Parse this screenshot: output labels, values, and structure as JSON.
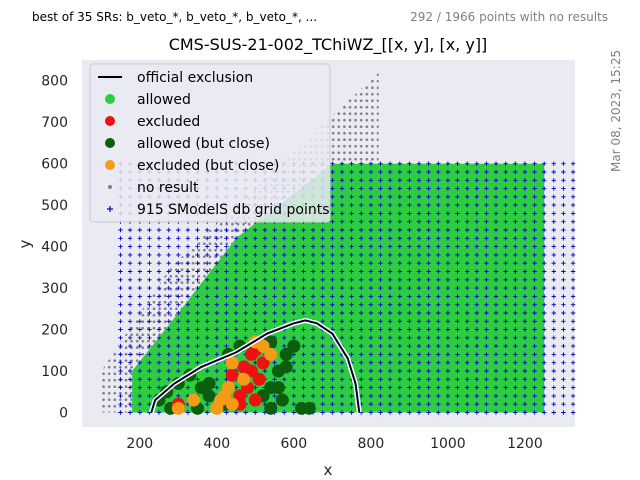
{
  "header": {
    "left_text": "best of 35 SRs: b_veto_*, b_veto_*, b_veto_*, ...",
    "right_text": "292 / 1966 points with no results",
    "side_date": "Mar 08, 2023, 15:25"
  },
  "chart_data": {
    "type": "scatter",
    "title": "CMS-SUS-21-002_TChiWZ_[[x, y], [x, y]]",
    "xlabel": "x",
    "ylabel": "y",
    "xlim": [
      50,
      1330
    ],
    "ylim": [
      -35,
      850
    ],
    "xticks": [
      200,
      400,
      600,
      800,
      1000,
      1200
    ],
    "yticks": [
      0,
      100,
      200,
      300,
      400,
      500,
      600,
      700,
      800
    ],
    "grid": false,
    "legend_position": "top-left",
    "legend": [
      {
        "label": "official exclusion",
        "marker": "line",
        "color": "#000000"
      },
      {
        "label": "allowed",
        "marker": "circle",
        "color": "#2ecc40"
      },
      {
        "label": "excluded",
        "marker": "circle",
        "color": "#ee1111"
      },
      {
        "label": "allowed (but close)",
        "marker": "circle",
        "color": "#0b5e0b"
      },
      {
        "label": "excluded (but close)",
        "marker": "circle",
        "color": "#f59b16"
      },
      {
        "label": "no result",
        "marker": "dot",
        "color": "#808080"
      },
      {
        "label": "915 SModelS db grid points",
        "marker": "plus",
        "color": "#0000cc"
      }
    ],
    "regions": {
      "allowed_region_outline": [
        [
          180,
          0
        ],
        [
          180,
          100
        ],
        [
          300,
          240
        ],
        [
          450,
          420
        ],
        [
          700,
          600
        ],
        [
          1250,
          600
        ],
        [
          1250,
          0
        ]
      ],
      "no_result_region_outline": [
        [
          100,
          0
        ],
        [
          100,
          100
        ],
        [
          280,
          350
        ],
        [
          820,
          820
        ],
        [
          820,
          600
        ],
        [
          700,
          600
        ],
        [
          450,
          420
        ],
        [
          300,
          240
        ],
        [
          180,
          100
        ],
        [
          180,
          0
        ]
      ],
      "db_grid": {
        "x_from": 150,
        "x_to": 1250,
        "x_step": 25,
        "y_from": 0,
        "y_to": 600,
        "y_step": 20
      }
    },
    "exclusion_curve": [
      [
        230,
        0
      ],
      [
        240,
        30
      ],
      [
        290,
        70
      ],
      [
        360,
        110
      ],
      [
        450,
        145
      ],
      [
        530,
        190
      ],
      [
        600,
        215
      ],
      [
        630,
        222
      ],
      [
        660,
        215
      ],
      [
        700,
        190
      ],
      [
        740,
        130
      ],
      [
        760,
        70
      ],
      [
        770,
        0
      ]
    ],
    "points": {
      "excluded": [
        [
          440,
          90
        ],
        [
          470,
          110
        ],
        [
          490,
          140
        ],
        [
          510,
          80
        ],
        [
          480,
          60
        ],
        [
          460,
          40
        ],
        [
          520,
          120
        ],
        [
          500,
          30
        ],
        [
          300,
          20
        ],
        [
          460,
          20
        ],
        [
          490,
          100
        ],
        [
          500,
          150
        ]
      ],
      "allowed_close": [
        [
          250,
          30
        ],
        [
          270,
          50
        ],
        [
          300,
          70
        ],
        [
          330,
          90
        ],
        [
          360,
          60
        ],
        [
          380,
          40
        ],
        [
          420,
          20
        ],
        [
          540,
          60
        ],
        [
          560,
          100
        ],
        [
          580,
          140
        ],
        [
          600,
          160
        ],
        [
          570,
          30
        ],
        [
          540,
          10
        ],
        [
          620,
          10
        ],
        [
          640,
          10
        ],
        [
          430,
          140
        ],
        [
          460,
          160
        ],
        [
          540,
          170
        ],
        [
          280,
          10
        ],
        [
          350,
          10
        ],
        [
          380,
          70
        ],
        [
          520,
          40
        ],
        [
          560,
          60
        ],
        [
          580,
          110
        ]
      ],
      "excluded_close": [
        [
          300,
          10
        ],
        [
          340,
          30
        ],
        [
          420,
          40
        ],
        [
          430,
          60
        ],
        [
          440,
          20
        ],
        [
          470,
          80
        ],
        [
          500,
          170
        ],
        [
          520,
          160
        ],
        [
          540,
          140
        ],
        [
          440,
          120
        ],
        [
          400,
          10
        ],
        [
          410,
          30
        ]
      ]
    }
  }
}
